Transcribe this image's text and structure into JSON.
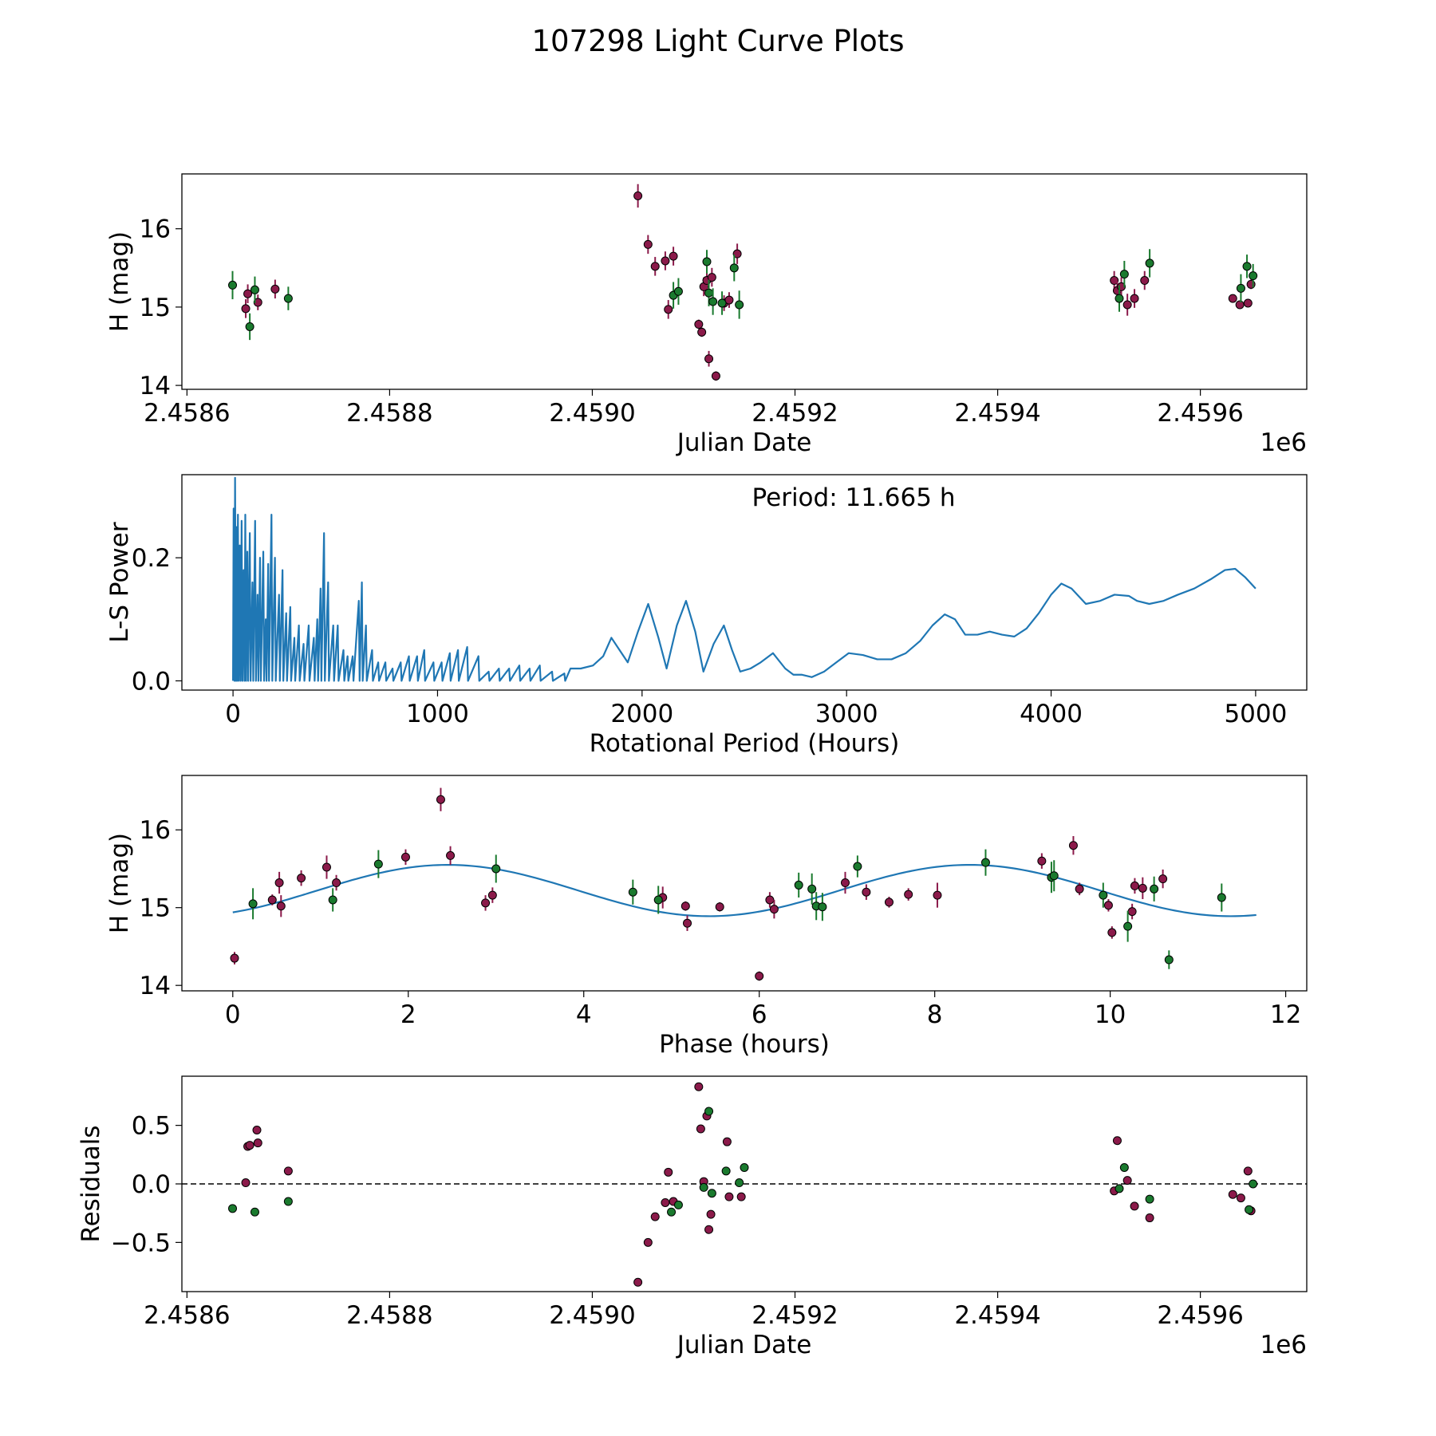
{
  "title": "107298 Light Curve Plots",
  "colors": {
    "magenta": "#8b1a4a",
    "green": "#1a7a2e",
    "line": "#1f77b4",
    "edge": "#000000"
  },
  "chart_data": [
    {
      "type": "scatter",
      "name": "light-curve",
      "xlabel": "Julian Date",
      "ylabel": "H (mag)",
      "offset_label": "1e6",
      "xlim": [
        2458595,
        2459705
      ],
      "ylim": [
        13.95,
        16.7
      ],
      "xticks": [
        2458600,
        2458800,
        2459000,
        2459200,
        2459400,
        2459600
      ],
      "xtick_labels": [
        "2.4586",
        "2.4588",
        "2.4590",
        "2.4592",
        "2.4594",
        "2.4596"
      ],
      "yticks": [
        14,
        15,
        16
      ],
      "ytick_labels": [
        "14",
        "15",
        "16"
      ],
      "series": [
        {
          "name": "band-1",
          "color": "magenta",
          "x": [
            2458658,
            2458660,
            2458670,
            2458687,
            2459045,
            2459055,
            2459062,
            2459072,
            2459075,
            2459080,
            2459105,
            2459108,
            2459110,
            2459113,
            2459115,
            2459118,
            2459122,
            2459130,
            2459135,
            2459143,
            2459515,
            2459518,
            2459522,
            2459528,
            2459535,
            2459545,
            2459632,
            2459639,
            2459647,
            2459650
          ],
          "y": [
            14.98,
            15.17,
            15.06,
            15.23,
            16.42,
            15.8,
            15.52,
            15.59,
            14.97,
            15.65,
            14.78,
            14.68,
            15.26,
            15.34,
            14.34,
            15.38,
            14.12,
            15.05,
            15.09,
            15.68,
            15.34,
            15.21,
            15.26,
            15.03,
            15.11,
            15.34,
            15.11,
            15.03,
            15.05,
            15.29
          ],
          "yerr": [
            0.12,
            0.12,
            0.1,
            0.12,
            0.15,
            0.12,
            0.12,
            0.12,
            0.12,
            0.12,
            0.06,
            0.06,
            0.12,
            0.12,
            0.1,
            0.12,
            0.06,
            0.1,
            0.1,
            0.13,
            0.12,
            0.12,
            0.12,
            0.14,
            0.12,
            0.12,
            0.05,
            0.05,
            0.05,
            0.06
          ]
        },
        {
          "name": "band-2",
          "color": "green",
          "x": [
            2458645,
            2458662,
            2458667,
            2458700,
            2459080,
            2459085,
            2459113,
            2459115,
            2459119,
            2459128,
            2459140,
            2459145,
            2459520,
            2459525,
            2459550,
            2459640,
            2459646,
            2459652
          ],
          "y": [
            15.28,
            14.75,
            15.22,
            15.11,
            15.15,
            15.2,
            15.58,
            15.18,
            15.07,
            15.05,
            15.5,
            15.03,
            15.11,
            15.42,
            15.56,
            15.24,
            15.52,
            15.4
          ],
          "yerr": [
            0.18,
            0.17,
            0.17,
            0.15,
            0.17,
            0.17,
            0.15,
            0.17,
            0.17,
            0.15,
            0.17,
            0.18,
            0.17,
            0.17,
            0.18,
            0.18,
            0.15,
            0.15
          ]
        }
      ]
    },
    {
      "type": "line",
      "name": "periodogram",
      "xlabel": "Rotational Period (Hours)",
      "ylabel": "L-S Power",
      "annotation": "Period: 11.665 h",
      "xlim": [
        -250,
        5250
      ],
      "ylim": [
        -0.015,
        0.335
      ],
      "xticks": [
        0,
        1000,
        2000,
        3000,
        4000,
        5000
      ],
      "xtick_labels": [
        "0",
        "1000",
        "2000",
        "3000",
        "4000",
        "5000"
      ],
      "yticks": [
        0,
        0.2
      ],
      "ytick_labels": [
        "0.0",
        "0.2"
      ],
      "spikes": [
        [
          3,
          0.28
        ],
        [
          10,
          0.33
        ],
        [
          16,
          0.25
        ],
        [
          24,
          0.27
        ],
        [
          33,
          0.22
        ],
        [
          42,
          0.26
        ],
        [
          52,
          0.18
        ],
        [
          60,
          0.27
        ],
        [
          70,
          0.21
        ],
        [
          82,
          0.24
        ],
        [
          95,
          0.16
        ],
        [
          108,
          0.26
        ],
        [
          120,
          0.14
        ],
        [
          132,
          0.2
        ],
        [
          148,
          0.21
        ],
        [
          160,
          0.1
        ],
        [
          172,
          0.19
        ],
        [
          188,
          0.27
        ],
        [
          205,
          0.2
        ],
        [
          225,
          0.14
        ],
        [
          242,
          0.18
        ],
        [
          260,
          0.11
        ],
        [
          280,
          0.12
        ],
        [
          300,
          0.07
        ],
        [
          322,
          0.09
        ],
        [
          345,
          0.06
        ],
        [
          370,
          0.09
        ],
        [
          395,
          0.07
        ],
        [
          412,
          0.1
        ],
        [
          428,
          0.15
        ],
        [
          445,
          0.24
        ],
        [
          465,
          0.16
        ],
        [
          490,
          0.09
        ],
        [
          512,
          0.09
        ],
        [
          540,
          0.05
        ],
        [
          560,
          0.04
        ],
        [
          585,
          0.04
        ],
        [
          615,
          0.13
        ],
        [
          630,
          0.16
        ],
        [
          650,
          0.09
        ],
        [
          680,
          0.05
        ],
        [
          710,
          0.03
        ],
        [
          745,
          0.03
        ],
        [
          780,
          0.02
        ],
        [
          820,
          0.03
        ],
        [
          860,
          0.04
        ],
        [
          900,
          0.04
        ],
        [
          935,
          0.05
        ],
        [
          980,
          0.03
        ],
        [
          1020,
          0.03
        ],
        [
          1060,
          0.045
        ],
        [
          1100,
          0.05
        ],
        [
          1145,
          0.055
        ],
        [
          1200,
          0.04
        ],
        [
          1250,
          0.015
        ],
        [
          1300,
          0.02
        ],
        [
          1350,
          0.02
        ],
        [
          1400,
          0.025
        ],
        [
          1450,
          0.02
        ],
        [
          1500,
          0.025
        ],
        [
          1560,
          0.015
        ],
        [
          1620,
          0.012
        ]
      ],
      "curve_x": [
        1650,
        1700,
        1760,
        1810,
        1850,
        1890,
        1930,
        1980,
        2030,
        2080,
        2120,
        2170,
        2215,
        2260,
        2300,
        2350,
        2400,
        2440,
        2480,
        2530,
        2580,
        2640,
        2700,
        2740,
        2780,
        2830,
        2890,
        2950,
        3010,
        3080,
        3150,
        3220,
        3290,
        3360,
        3420,
        3480,
        3530,
        3580,
        3640,
        3700,
        3760,
        3820,
        3880,
        3940,
        4000,
        4050,
        4100,
        4170,
        4240,
        4310,
        4380,
        4420,
        4480,
        4550,
        4620,
        4700,
        4780,
        4850,
        4900,
        4950,
        5000
      ],
      "curve_y": [
        0.02,
        0.02,
        0.025,
        0.04,
        0.07,
        0.05,
        0.03,
        0.08,
        0.125,
        0.07,
        0.02,
        0.09,
        0.13,
        0.08,
        0.015,
        0.06,
        0.09,
        0.05,
        0.015,
        0.02,
        0.03,
        0.045,
        0.02,
        0.01,
        0.01,
        0.006,
        0.015,
        0.03,
        0.045,
        0.042,
        0.035,
        0.035,
        0.045,
        0.065,
        0.09,
        0.108,
        0.1,
        0.075,
        0.075,
        0.08,
        0.075,
        0.072,
        0.085,
        0.11,
        0.14,
        0.158,
        0.15,
        0.125,
        0.13,
        0.14,
        0.138,
        0.13,
        0.125,
        0.13,
        0.14,
        0.15,
        0.165,
        0.18,
        0.182,
        0.168,
        0.15
      ]
    },
    {
      "type": "scatter",
      "name": "phased-curve",
      "xlabel": "Phase (hours)",
      "ylabel": "H (mag)",
      "xlim": [
        -0.58,
        12.24
      ],
      "ylim": [
        13.93,
        16.7
      ],
      "xticks": [
        0,
        2,
        4,
        6,
        8,
        10,
        12
      ],
      "xtick_labels": [
        "0",
        "2",
        "4",
        "6",
        "8",
        "10",
        "12"
      ],
      "yticks": [
        14,
        15,
        16
      ],
      "ytick_labels": [
        "14",
        "15",
        "16"
      ],
      "fit": {
        "mean": 15.22,
        "amplitude": 0.33,
        "peak_phase": 2.45,
        "period": 5.95,
        "x_range": [
          0,
          11.665
        ]
      },
      "series": [
        {
          "name": "band-1",
          "color": "magenta",
          "x": [
            0.02,
            0.45,
            0.53,
            0.55,
            0.78,
            1.07,
            1.18,
            1.97,
            2.37,
            2.48,
            2.88,
            2.96,
            4.9,
            5.16,
            5.18,
            5.55,
            6.0,
            6.12,
            6.17,
            6.98,
            7.22,
            7.48,
            7.7,
            8.03,
            9.22,
            9.58,
            9.65,
            9.98,
            10.02,
            10.25,
            10.28,
            10.37,
            10.6
          ],
          "y": [
            14.35,
            15.1,
            15.32,
            15.02,
            15.38,
            15.52,
            15.32,
            15.65,
            16.39,
            15.67,
            15.06,
            15.16,
            15.13,
            15.02,
            14.8,
            15.01,
            14.12,
            15.1,
            14.98,
            15.32,
            15.2,
            15.07,
            15.17,
            15.16,
            15.6,
            15.8,
            15.24,
            15.03,
            14.68,
            14.95,
            15.28,
            15.25,
            15.37
          ],
          "yerr": [
            0.08,
            0.07,
            0.14,
            0.14,
            0.1,
            0.15,
            0.1,
            0.1,
            0.15,
            0.12,
            0.1,
            0.1,
            0.14,
            0.06,
            0.1,
            0.06,
            0.06,
            0.1,
            0.12,
            0.14,
            0.1,
            0.07,
            0.08,
            0.16,
            0.1,
            0.12,
            0.08,
            0.08,
            0.08,
            0.1,
            0.1,
            0.14,
            0.12
          ]
        },
        {
          "name": "band-2",
          "color": "green",
          "x": [
            0.23,
            1.14,
            1.66,
            3.0,
            4.56,
            4.85,
            6.45,
            6.6,
            6.65,
            6.72,
            7.12,
            8.58,
            9.33,
            9.36,
            9.92,
            10.2,
            10.5,
            10.67,
            11.27
          ],
          "y": [
            15.05,
            15.1,
            15.56,
            15.5,
            15.2,
            15.1,
            15.29,
            15.24,
            15.02,
            15.01,
            15.53,
            15.58,
            15.39,
            15.41,
            15.16,
            14.76,
            15.24,
            14.33,
            15.13
          ],
          "yerr": [
            0.2,
            0.15,
            0.18,
            0.18,
            0.16,
            0.18,
            0.16,
            0.2,
            0.18,
            0.18,
            0.14,
            0.17,
            0.2,
            0.2,
            0.16,
            0.2,
            0.16,
            0.12,
            0.18
          ]
        }
      ]
    },
    {
      "type": "scatter",
      "name": "residuals",
      "xlabel": "Julian Date",
      "ylabel": "Residuals",
      "offset_label": "1e6",
      "xlim": [
        2458595,
        2459705
      ],
      "ylim": [
        -0.92,
        0.92
      ],
      "xticks": [
        2458600,
        2458800,
        2459000,
        2459200,
        2459400,
        2459600
      ],
      "xtick_labels": [
        "2.4586",
        "2.4588",
        "2.4590",
        "2.4592",
        "2.4594",
        "2.4596"
      ],
      "yticks": [
        0.5,
        0.0,
        -0.5
      ],
      "ytick_labels": [
        "0.5",
        "0.0",
        "−0.5"
      ],
      "hline": 0,
      "series": [
        {
          "name": "band-1",
          "color": "magenta",
          "x": [
            2458658,
            2458660,
            2458662,
            2458669,
            2458670,
            2458700,
            2459045,
            2459055,
            2459062,
            2459072,
            2459075,
            2459080,
            2459105,
            2459107,
            2459110,
            2459113,
            2459115,
            2459117,
            2459133,
            2459135,
            2459147,
            2459515,
            2459518,
            2459528,
            2459535,
            2459550,
            2459632,
            2459640,
            2459647,
            2459650
          ],
          "y": [
            0.01,
            0.32,
            0.33,
            0.46,
            0.35,
            0.11,
            -0.84,
            -0.5,
            -0.28,
            -0.16,
            0.1,
            -0.15,
            0.83,
            0.47,
            0.02,
            0.58,
            -0.39,
            -0.26,
            0.36,
            -0.11,
            -0.11,
            -0.06,
            0.37,
            0.03,
            -0.19,
            -0.29,
            -0.09,
            -0.12,
            0.11,
            -0.23
          ],
          "yerr": []
        },
        {
          "name": "band-2",
          "color": "green",
          "x": [
            2458645,
            2458667,
            2458700,
            2459078,
            2459085,
            2459110,
            2459115,
            2459118,
            2459132,
            2459145,
            2459150,
            2459520,
            2459525,
            2459550,
            2459648,
            2459652
          ],
          "y": [
            -0.21,
            -0.24,
            -0.15,
            -0.24,
            -0.18,
            -0.03,
            0.62,
            -0.08,
            0.11,
            0.01,
            0.14,
            -0.04,
            0.14,
            -0.13,
            -0.22,
            0.0
          ],
          "yerr": []
        }
      ]
    }
  ]
}
